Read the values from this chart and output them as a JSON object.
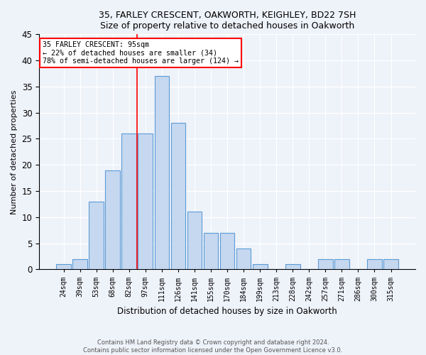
{
  "title1": "35, FARLEY CRESCENT, OAKWORTH, KEIGHLEY, BD22 7SH",
  "title2": "Size of property relative to detached houses in Oakworth",
  "xlabel": "Distribution of detached houses by size in Oakworth",
  "ylabel": "Number of detached properties",
  "categories": [
    "24sqm",
    "39sqm",
    "53sqm",
    "68sqm",
    "82sqm",
    "97sqm",
    "111sqm",
    "126sqm",
    "141sqm",
    "155sqm",
    "170sqm",
    "184sqm",
    "199sqm",
    "213sqm",
    "228sqm",
    "242sqm",
    "257sqm",
    "271sqm",
    "286sqm",
    "300sqm",
    "315sqm"
  ],
  "values": [
    1,
    2,
    13,
    19,
    26,
    26,
    37,
    28,
    11,
    7,
    7,
    4,
    1,
    0,
    1,
    0,
    2,
    2,
    0,
    2,
    2
  ],
  "bar_color": "#c5d8f0",
  "bar_edge_color": "#5b9bd5",
  "annotation_text1": "35 FARLEY CRESCENT: 95sqm",
  "annotation_text2": "← 22% of detached houses are smaller (34)",
  "annotation_text3": "78% of semi-detached houses are larger (124) →",
  "annotation_box_color": "white",
  "annotation_box_edge_color": "red",
  "vline_color": "red",
  "footer1": "Contains HM Land Registry data © Crown copyright and database right 2024.",
  "footer2": "Contains public sector information licensed under the Open Government Licence v3.0.",
  "background_color": "#eef2f9",
  "ylim": [
    0,
    45
  ],
  "grid_color": "white",
  "vline_bar_index": 5
}
